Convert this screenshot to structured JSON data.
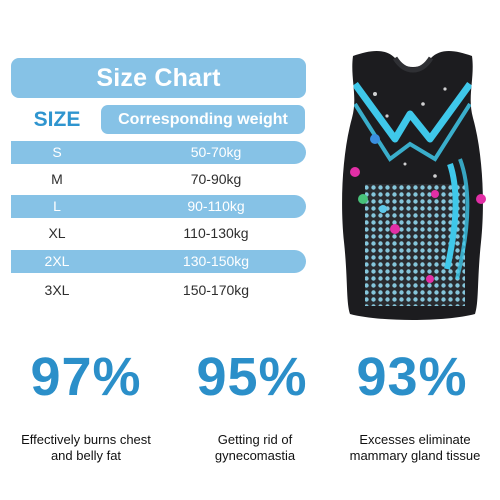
{
  "size_chart": {
    "title": "Size Chart",
    "header_size": "SIZE",
    "header_weight": "Corresponding weight",
    "rows": [
      {
        "size": "S",
        "weight": "50-70kg"
      },
      {
        "size": "M",
        "weight": "70-90kg"
      },
      {
        "size": "L",
        "weight": "90-110kg"
      },
      {
        "size": "XL",
        "weight": "110-130kg"
      },
      {
        "size": "2XL",
        "weight": "130-150kg"
      },
      {
        "size": "3XL",
        "weight": "150-170kg"
      }
    ]
  },
  "product_image": {
    "icon": "compression-vest-icon"
  },
  "stats": [
    {
      "value": "97%",
      "line1": "Effectively burns chest",
      "line2": "and belly fat"
    },
    {
      "value": "95%",
      "line1": "Getting rid of",
      "line2": "gynecomastia"
    },
    {
      "value": "93%",
      "line1": "Excesses eliminate",
      "line2": "mammary gland tissue"
    }
  ],
  "colors": {
    "accent_light": "#86c2e6",
    "accent_dark": "#2b8fc9",
    "vest_body": "#1c1c1f",
    "vest_highlight": "#3fc8ea",
    "particle_pink": "#e22fa6"
  }
}
